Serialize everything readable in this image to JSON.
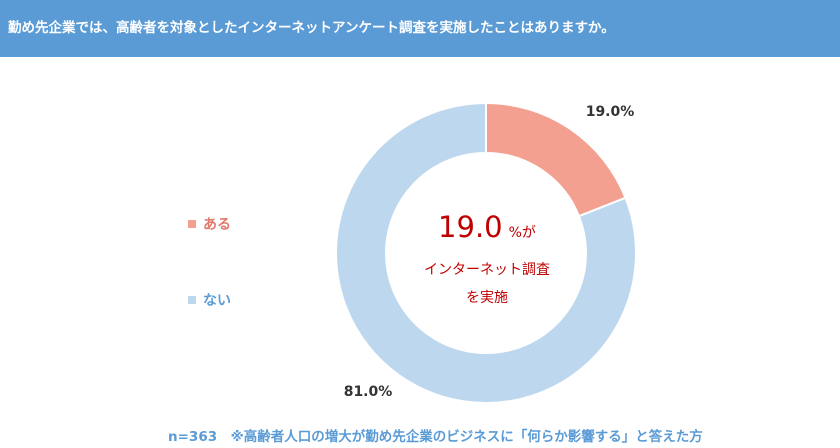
{
  "header": {
    "title": "勤め先企業では、高齢者を対象としたインターネットアンケート調査を実施したことはありますか。"
  },
  "chart_data": {
    "type": "pie",
    "variant": "donut",
    "categories": [
      "ある",
      "ない"
    ],
    "values": [
      19.0,
      81.0
    ],
    "data_labels": [
      "19.0%",
      "81.0%"
    ],
    "colors": [
      "#f4a090",
      "#bdd7ee"
    ],
    "legend": [
      {
        "label": "ある",
        "color": "#f4a090",
        "text_color": "#e0786b"
      },
      {
        "label": "ない",
        "color": "#bdd7ee",
        "text_color": "#5b9bd5"
      }
    ],
    "legend_placement": "left"
  },
  "center": {
    "value": "19.0",
    "unit": "%が",
    "line1": "インターネット調査",
    "line2": "を実施"
  },
  "footnote": "n=363　※高齢者人口の増大が勤め先企業のビジネスに「何らか影響する」と答えた方"
}
